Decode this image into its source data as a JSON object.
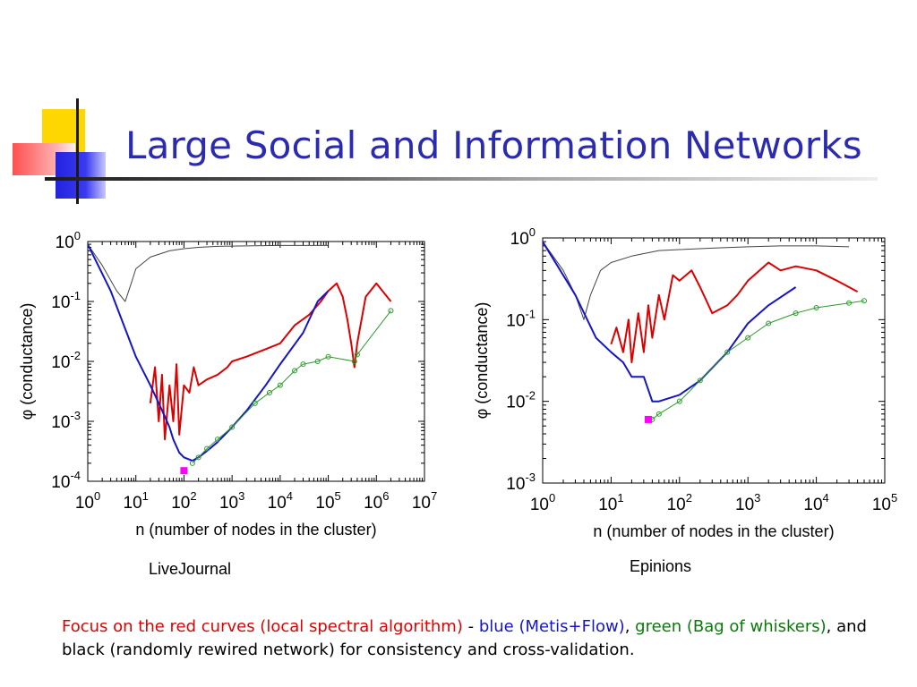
{
  "slide": {
    "title": "Large Social and Information Networks",
    "colors": {
      "title": "#2b2bb0",
      "red_curve": "#dd0000",
      "blue_curve": "#1515c8",
      "green_curve": "#2a9a2a",
      "black_curve": "#444444",
      "marker": "#ff00ff"
    },
    "caption": {
      "red": "Focus on the red curves (local spectral algorithm)",
      "sep1": " - ",
      "blue": "blue (Metis+Flow)",
      "sep2": ", ",
      "green": "green (Bag of whiskers)",
      "rest": ", and black (randomly rewired network) for consistency and cross-validation."
    }
  },
  "chart_data": [
    {
      "type": "line",
      "dataset_label": "LiveJournal",
      "xlabel": "n (number of nodes in the cluster)",
      "ylabel": "φ (conductance)",
      "x_scale": "log",
      "y_scale": "log",
      "xlim": [
        1,
        10000000
      ],
      "ylim": [
        0.0001,
        1
      ],
      "x_ticks": [
        {
          "v": 1,
          "e": "0"
        },
        {
          "v": 10,
          "e": "1"
        },
        {
          "v": 100,
          "e": "2"
        },
        {
          "v": 1000,
          "e": "3"
        },
        {
          "v": 10000,
          "e": "4"
        },
        {
          "v": 100000,
          "e": "5"
        },
        {
          "v": 1000000,
          "e": "6"
        },
        {
          "v": 10000000,
          "e": "7"
        }
      ],
      "y_ticks": [
        {
          "v": 0.0001,
          "e": "-4"
        },
        {
          "v": 0.001,
          "e": "-3"
        },
        {
          "v": 0.01,
          "e": "-2"
        },
        {
          "v": 0.1,
          "e": "-1"
        },
        {
          "v": 1,
          "e": "0"
        }
      ],
      "series": [
        {
          "color": "black",
          "x": [
            1,
            2,
            4,
            6,
            8,
            10,
            20,
            50,
            100,
            200,
            500,
            1000,
            3000,
            10000,
            30000,
            100000
          ],
          "y": [
            0.9,
            0.4,
            0.15,
            0.1,
            0.2,
            0.35,
            0.55,
            0.7,
            0.76,
            0.8,
            0.83,
            0.84,
            0.85,
            0.86,
            0.86,
            0.86
          ]
        },
        {
          "color": "red",
          "x": [
            20,
            25,
            30,
            35,
            40,
            50,
            60,
            70,
            80,
            100,
            130,
            160,
            200,
            300,
            500,
            800,
            1000,
            2000,
            5000,
            10000,
            20000,
            40000,
            70000,
            100000,
            150000,
            200000,
            250000,
            300000,
            350000,
            400000,
            600000,
            1000000,
            2000000
          ],
          "y": [
            0.002,
            0.008,
            0.001,
            0.006,
            0.0005,
            0.004,
            0.001,
            0.009,
            0.0006,
            0.004,
            0.003,
            0.008,
            0.004,
            0.005,
            0.006,
            0.008,
            0.01,
            0.012,
            0.016,
            0.02,
            0.04,
            0.06,
            0.1,
            0.15,
            0.2,
            0.12,
            0.05,
            0.02,
            0.008,
            0.02,
            0.12,
            0.2,
            0.1
          ]
        },
        {
          "color": "blue",
          "x": [
            1,
            3,
            10,
            20,
            30,
            40,
            50,
            60,
            80,
            100,
            150,
            200,
            300,
            500,
            1000,
            2000,
            5000,
            10000,
            30000,
            60000,
            100000
          ],
          "y": [
            0.9,
            0.15,
            0.012,
            0.004,
            0.002,
            0.0012,
            0.0008,
            0.0005,
            0.0003,
            0.00025,
            0.00022,
            0.00025,
            0.00032,
            0.00045,
            0.0008,
            0.0015,
            0.004,
            0.009,
            0.03,
            0.1,
            0.15
          ]
        },
        {
          "color": "green",
          "x": [
            150,
            200,
            300,
            500,
            1000,
            3000,
            6000,
            10000,
            20000,
            30000,
            60000,
            100000,
            350000,
            400000,
            2000000
          ],
          "y": [
            0.0002,
            0.00025,
            0.00035,
            0.0005,
            0.0008,
            0.002,
            0.003,
            0.004,
            0.007,
            0.009,
            0.01,
            0.012,
            0.01,
            0.013,
            0.07
          ]
        },
        {
          "color": "magenta-marker",
          "x": [
            100
          ],
          "y": [
            0.00015
          ]
        }
      ]
    },
    {
      "type": "line",
      "dataset_label": "Epinions",
      "xlabel": "n (number of nodes in the cluster)",
      "ylabel": "φ (conductance)",
      "x_scale": "log",
      "y_scale": "log",
      "xlim": [
        1,
        100000
      ],
      "ylim": [
        0.001,
        1
      ],
      "x_ticks": [
        {
          "v": 1,
          "e": "0"
        },
        {
          "v": 10,
          "e": "1"
        },
        {
          "v": 100,
          "e": "2"
        },
        {
          "v": 1000,
          "e": "3"
        },
        {
          "v": 10000,
          "e": "4"
        },
        {
          "v": 100000,
          "e": "5"
        }
      ],
      "y_ticks": [
        {
          "v": 0.001,
          "e": "-3"
        },
        {
          "v": 0.01,
          "e": "-2"
        },
        {
          "v": 0.1,
          "e": "-1"
        },
        {
          "v": 1,
          "e": "0"
        }
      ],
      "series": [
        {
          "color": "black",
          "x": [
            1,
            2,
            3,
            4,
            5,
            7,
            10,
            20,
            50,
            100,
            300,
            1000,
            3000,
            10000,
            30000
          ],
          "y": [
            0.9,
            0.4,
            0.2,
            0.1,
            0.2,
            0.4,
            0.5,
            0.6,
            0.7,
            0.72,
            0.75,
            0.78,
            0.8,
            0.8,
            0.78
          ]
        },
        {
          "color": "red",
          "x": [
            10,
            12,
            15,
            18,
            20,
            25,
            30,
            35,
            40,
            50,
            60,
            80,
            100,
            150,
            200,
            300,
            500,
            700,
            1000,
            2000,
            3000,
            5000,
            10000,
            20000,
            30000,
            40000
          ],
          "y": [
            0.05,
            0.08,
            0.04,
            0.1,
            0.03,
            0.12,
            0.04,
            0.15,
            0.06,
            0.2,
            0.1,
            0.35,
            0.3,
            0.4,
            0.25,
            0.12,
            0.15,
            0.2,
            0.3,
            0.5,
            0.4,
            0.45,
            0.4,
            0.3,
            0.25,
            0.22
          ]
        },
        {
          "color": "blue",
          "x": [
            1,
            3,
            6,
            10,
            15,
            20,
            30,
            40,
            50,
            100,
            200,
            500,
            1000,
            2000,
            5000
          ],
          "y": [
            0.9,
            0.2,
            0.06,
            0.04,
            0.03,
            0.02,
            0.02,
            0.01,
            0.01,
            0.012,
            0.018,
            0.04,
            0.09,
            0.15,
            0.25
          ]
        },
        {
          "color": "green",
          "x": [
            40,
            50,
            100,
            200,
            500,
            1000,
            2000,
            5000,
            10000,
            30000,
            50000
          ],
          "y": [
            0.006,
            0.007,
            0.01,
            0.018,
            0.04,
            0.06,
            0.09,
            0.12,
            0.14,
            0.16,
            0.17
          ]
        },
        {
          "color": "magenta-marker",
          "x": [
            35
          ],
          "y": [
            0.006
          ]
        }
      ]
    }
  ]
}
